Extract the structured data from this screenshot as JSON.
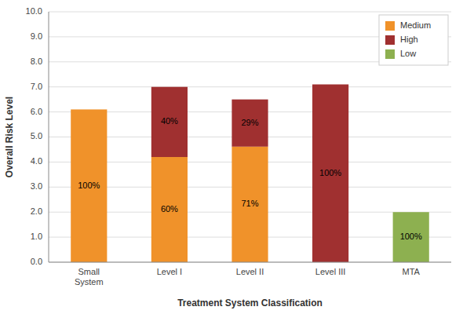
{
  "chart_data": {
    "type": "bar",
    "stacked": true,
    "xlabel": "Treatment System Classification",
    "ylabel": "Overall Risk Level",
    "categories": [
      "Small\nSystem",
      "Level I",
      "Level II",
      "Level III",
      "MTA"
    ],
    "series": [
      {
        "name": "Medium",
        "color": "#F0922A",
        "values": [
          6.1,
          4.2,
          4.615,
          0.0,
          0.0
        ],
        "shares": [
          100,
          60,
          71,
          null,
          null
        ],
        "share_labels": [
          "100%",
          "60%",
          "71%",
          null,
          null
        ]
      },
      {
        "name": "High",
        "color": "#A03030",
        "values": [
          0.0,
          2.8,
          1.885,
          7.1,
          0.0
        ],
        "shares": [
          null,
          40,
          29,
          100,
          null
        ],
        "share_labels": [
          null,
          "40%",
          "29%",
          "100%",
          null
        ]
      },
      {
        "name": "Low",
        "color": "#8DB050",
        "values": [
          0.0,
          0.0,
          0.0,
          0.0,
          2.0
        ],
        "shares": [
          null,
          null,
          null,
          null,
          100
        ],
        "share_labels": [
          null,
          null,
          null,
          null,
          "100%"
        ]
      }
    ],
    "ylim": [
      0.0,
      10.0
    ],
    "yticks": [
      {
        "value": 0,
        "label": "0.0"
      },
      {
        "value": 1,
        "label": "1.0"
      },
      {
        "value": 2,
        "label": "2.0"
      },
      {
        "value": 3,
        "label": "3.0"
      },
      {
        "value": 4,
        "label": "4.0"
      },
      {
        "value": 5,
        "label": "5.0"
      },
      {
        "value": 6,
        "label": "6.0"
      },
      {
        "value": 7,
        "label": "7.0"
      },
      {
        "value": 8,
        "label": "8.0"
      },
      {
        "value": 9,
        "label": "9.0"
      },
      {
        "value": 10,
        "label": "10.0"
      }
    ],
    "grid": true,
    "legend": "upper right"
  }
}
